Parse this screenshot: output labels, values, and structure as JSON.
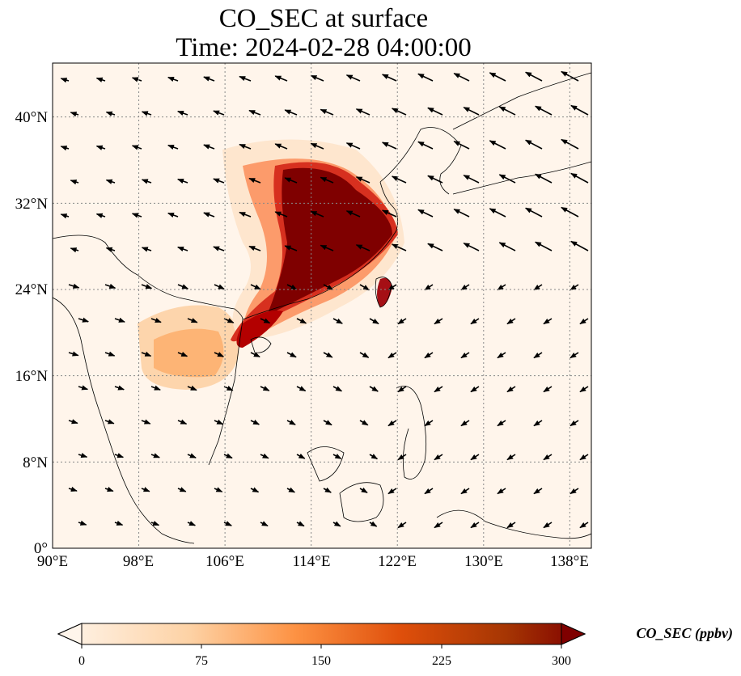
{
  "title": {
    "line1": "CO_SEC at surface",
    "line2": "Time: 2024-02-28 04:00:00"
  },
  "map": {
    "lon_range": [
      90,
      140
    ],
    "lat_range": [
      0,
      45
    ],
    "lon_ticks": [
      "90°E",
      "98°E",
      "106°E",
      "114°E",
      "122°E",
      "130°E",
      "138°E"
    ],
    "lat_ticks": [
      "0°",
      "8°N",
      "16°N",
      "24°N",
      "32°N",
      "40°N"
    ],
    "gridlines": true
  },
  "colorbar": {
    "label": "CO_SEC (ppbv)",
    "ticks": [
      "0",
      "75",
      "150",
      "225",
      "300"
    ],
    "colormap": [
      "#fff5eb",
      "#fdd2a5",
      "#fd9243",
      "#df4f0b",
      "#a63603",
      "#7f0000"
    ],
    "extend": "both"
  }
}
